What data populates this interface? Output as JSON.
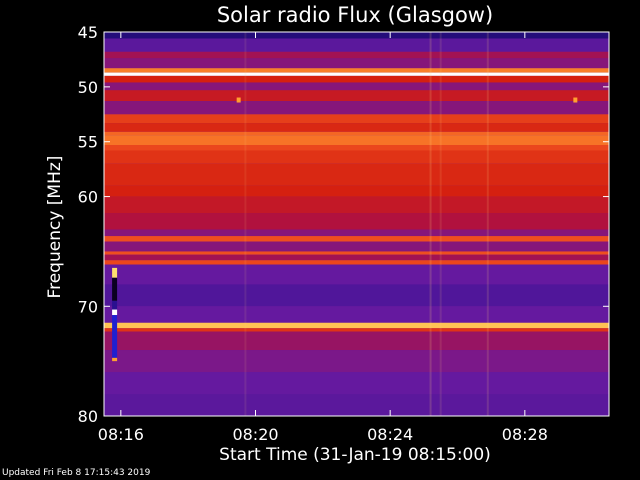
{
  "chart_data": {
    "type": "heatmap",
    "title": "Solar radio Flux (Glasgow)",
    "xlabel": "Start Time (31-Jan-19 08:15:00)",
    "ylabel": "Frequency [MHz]",
    "footer": "Updated Fri Feb  8 17:15:43 2019",
    "x_unit": "minutes",
    "xlim": [
      15.5,
      30.5
    ],
    "ylim": [
      45,
      80
    ],
    "y_inverted": true,
    "x_ticks": [
      {
        "value": 16,
        "label": "08:16"
      },
      {
        "value": 20,
        "label": "08:20"
      },
      {
        "value": 24,
        "label": "08:24"
      },
      {
        "value": 28,
        "label": "08:28"
      }
    ],
    "y_ticks": [
      {
        "value": 45,
        "label": "45"
      },
      {
        "value": 50,
        "label": "50"
      },
      {
        "value": 55,
        "label": "55"
      },
      {
        "value": 60,
        "label": "60"
      },
      {
        "value": 70,
        "label": "70"
      },
      {
        "value": 80,
        "label": "80"
      }
    ],
    "colormap": [
      "#0a0020",
      "#2a1090",
      "#6a1aa0",
      "#b01040",
      "#d52010",
      "#f05020",
      "#ffa030",
      "#ffe070",
      "#ffffff"
    ],
    "frequency_bands": [
      {
        "from": 45.0,
        "to": 45.6,
        "level": 0.1
      },
      {
        "from": 45.6,
        "to": 46.8,
        "level": 0.22
      },
      {
        "from": 46.8,
        "to": 47.4,
        "level": 0.35
      },
      {
        "from": 47.4,
        "to": 48.3,
        "level": 0.3
      },
      {
        "from": 48.3,
        "to": 48.7,
        "level": 0.7
      },
      {
        "from": 48.7,
        "to": 49.0,
        "level": 1.0
      },
      {
        "from": 49.0,
        "to": 49.6,
        "level": 0.5
      },
      {
        "from": 49.6,
        "to": 50.3,
        "level": 0.3
      },
      {
        "from": 50.3,
        "to": 51.3,
        "level": 0.45
      },
      {
        "from": 51.3,
        "to": 52.5,
        "level": 0.3
      },
      {
        "from": 52.5,
        "to": 53.3,
        "level": 0.58
      },
      {
        "from": 53.3,
        "to": 54.1,
        "level": 0.52
      },
      {
        "from": 54.1,
        "to": 54.4,
        "level": 0.66
      },
      {
        "from": 54.4,
        "to": 55.3,
        "level": 0.68
      },
      {
        "from": 55.3,
        "to": 55.8,
        "level": 0.6
      },
      {
        "from": 55.8,
        "to": 57.0,
        "level": 0.55
      },
      {
        "from": 57.0,
        "to": 59.0,
        "level": 0.52
      },
      {
        "from": 59.0,
        "to": 60.0,
        "level": 0.5
      },
      {
        "from": 60.0,
        "to": 61.5,
        "level": 0.44
      },
      {
        "from": 61.5,
        "to": 63.0,
        "level": 0.38
      },
      {
        "from": 63.0,
        "to": 63.6,
        "level": 0.3
      },
      {
        "from": 63.6,
        "to": 64.1,
        "level": 0.62
      },
      {
        "from": 64.1,
        "to": 65.0,
        "level": 0.3
      },
      {
        "from": 65.0,
        "to": 65.3,
        "level": 0.62
      },
      {
        "from": 65.3,
        "to": 65.8,
        "level": 0.35
      },
      {
        "from": 65.8,
        "to": 66.2,
        "level": 0.6
      },
      {
        "from": 66.2,
        "to": 68.0,
        "level": 0.24
      },
      {
        "from": 68.0,
        "to": 70.0,
        "level": 0.2
      },
      {
        "from": 70.0,
        "to": 71.5,
        "level": 0.24
      },
      {
        "from": 71.5,
        "to": 72.0,
        "level": 0.82
      },
      {
        "from": 72.0,
        "to": 72.3,
        "level": 0.55
      },
      {
        "from": 72.3,
        "to": 74.0,
        "level": 0.33
      },
      {
        "from": 74.0,
        "to": 76.0,
        "level": 0.28
      },
      {
        "from": 76.0,
        "to": 78.0,
        "level": 0.24
      },
      {
        "from": 78.0,
        "to": 80.0,
        "level": 0.22
      }
    ],
    "vertical_features": [
      {
        "x": 19.7,
        "level": 0.1
      },
      {
        "x": 25.2,
        "level": 0.18
      },
      {
        "x": 25.5,
        "level": 0.12
      },
      {
        "x": 26.9,
        "level": 0.15
      }
    ],
    "point_features": [
      {
        "x": 19.5,
        "y": 51.2,
        "level": 0.75
      },
      {
        "x": 29.5,
        "y": 51.2,
        "level": 0.75
      }
    ],
    "calibration_strip": {
      "x": 15.8,
      "segments": [
        {
          "from": 66.5,
          "to": 67.4,
          "color": "#ffe070"
        },
        {
          "from": 67.4,
          "to": 69.5,
          "color": "#0a0020"
        },
        {
          "from": 69.5,
          "to": 70.3,
          "color": "#2a1090"
        },
        {
          "from": 70.3,
          "to": 70.8,
          "color": "#ffffff"
        },
        {
          "from": 70.8,
          "to": 74.7,
          "color": "#2020d0"
        },
        {
          "from": 74.7,
          "to": 75.0,
          "color": "#ffa030"
        }
      ]
    }
  }
}
